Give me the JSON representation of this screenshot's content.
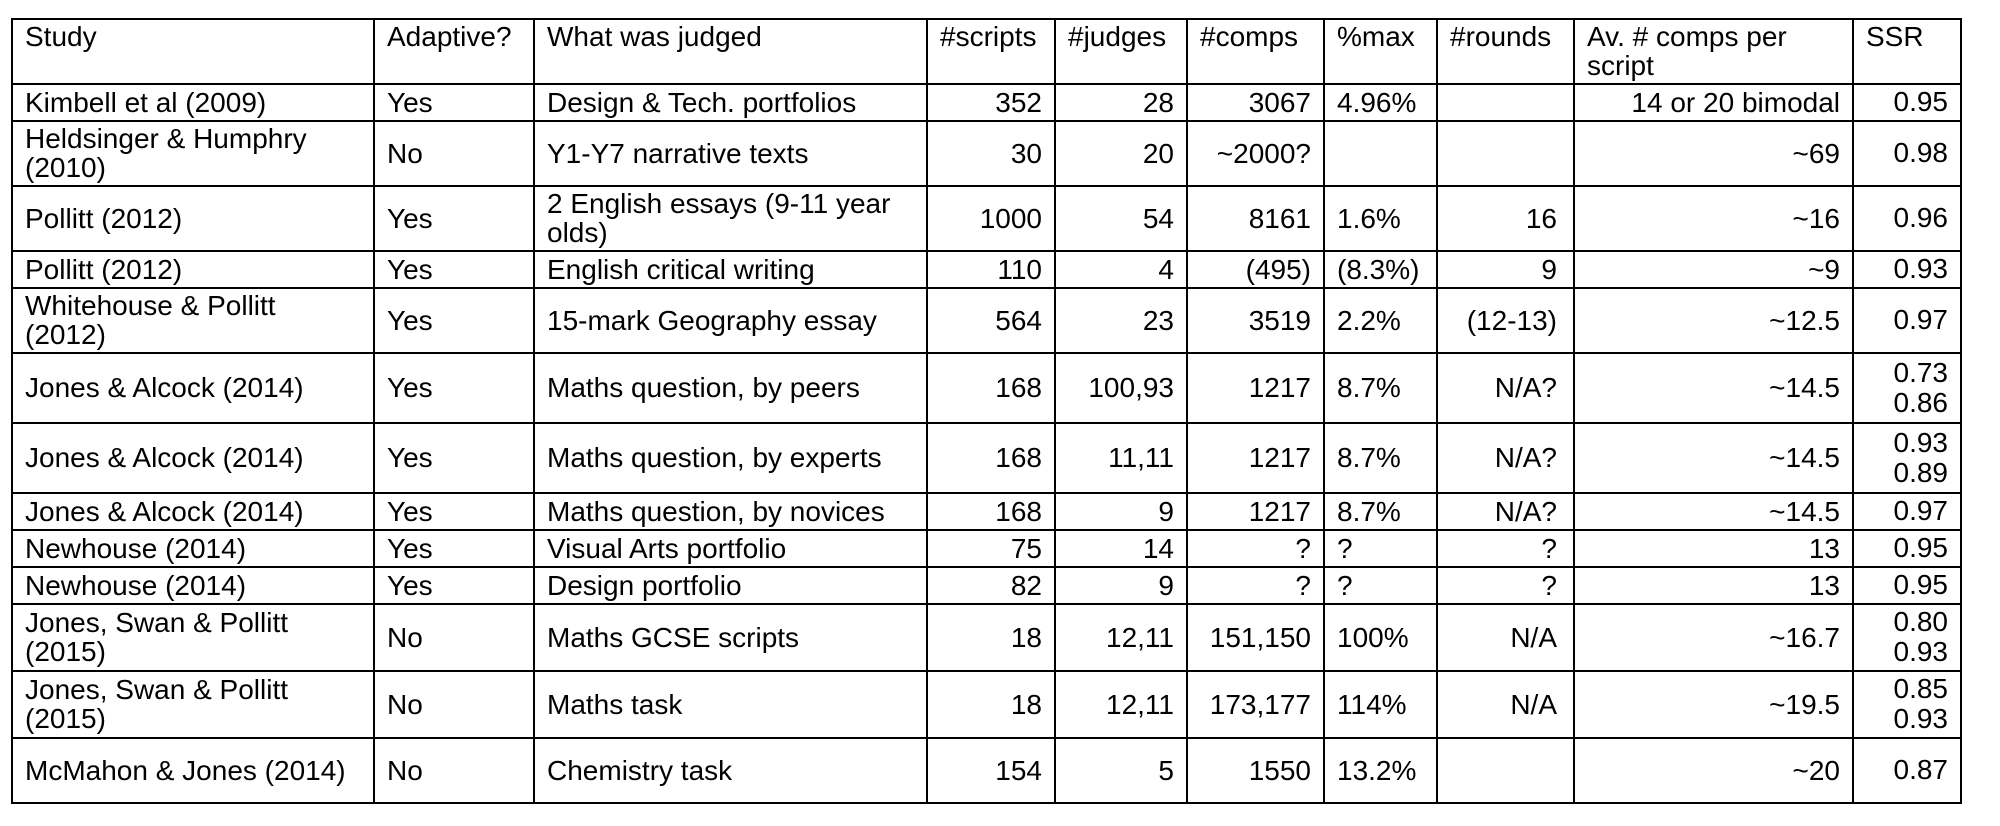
{
  "table": {
    "headers": [
      "Study",
      "Adaptive?",
      "What was judged",
      "#scripts",
      "#judges",
      "#comps",
      "%max",
      "#rounds",
      "Av.  # comps per script",
      "SSR"
    ],
    "rows": [
      {
        "study": "Kimbell et al (2009)",
        "adaptive": "Yes",
        "judged": "Design & Tech. portfolios",
        "scripts": "352",
        "judges": "28",
        "comps": "3067",
        "pct_max": "4.96%",
        "rounds": "",
        "avg_comps": "14 or 20 bimodal",
        "ssr": [
          "0.95"
        ]
      },
      {
        "study": "Heldsinger & Humphry (2010)",
        "adaptive": "No",
        "judged": "Y1-Y7 narrative texts",
        "scripts": "30",
        "judges": "20",
        "comps": "~2000?",
        "pct_max": "",
        "rounds": "",
        "avg_comps": "~69",
        "ssr": [
          "0.98"
        ]
      },
      {
        "study": "Pollitt (2012)",
        "adaptive": "Yes",
        "judged": "2 English essays (9-11 year olds)",
        "scripts": "1000",
        "judges": "54",
        "comps": "8161",
        "pct_max": "1.6%",
        "rounds": "16",
        "avg_comps": "~16",
        "ssr": [
          "0.96"
        ]
      },
      {
        "study": "Pollitt (2012)",
        "adaptive": "Yes",
        "judged": "English critical writing",
        "scripts": "110",
        "judges": "4",
        "comps": "(495)",
        "pct_max": "(8.3%)",
        "rounds": "9",
        "avg_comps": "~9",
        "ssr": [
          "0.93"
        ]
      },
      {
        "study": "Whitehouse & Pollitt (2012)",
        "adaptive": "Yes",
        "judged": "15-mark Geography essay",
        "scripts": "564",
        "judges": "23",
        "comps": "3519",
        "pct_max": "2.2%",
        "rounds": "(12-13)",
        "avg_comps": "~12.5",
        "ssr": [
          "0.97"
        ]
      },
      {
        "study": "Jones & Alcock (2014)",
        "adaptive": "Yes",
        "judged": "Maths question, by peers",
        "scripts": "168",
        "judges": "100,93",
        "comps": "1217",
        "pct_max": "8.7%",
        "rounds": "N/A?",
        "avg_comps": "~14.5",
        "ssr": [
          "0.73",
          "0.86"
        ]
      },
      {
        "study": "Jones & Alcock (2014)",
        "adaptive": "Yes",
        "judged": "Maths question, by experts",
        "scripts": "168",
        "judges": "11,11",
        "comps": "1217",
        "pct_max": "8.7%",
        "rounds": "N/A?",
        "avg_comps": "~14.5",
        "ssr": [
          "0.93",
          "0.89"
        ]
      },
      {
        "study": "Jones & Alcock (2014)",
        "adaptive": "Yes",
        "judged": "Maths question, by novices",
        "scripts": "168",
        "judges": "9",
        "comps": "1217",
        "pct_max": "8.7%",
        "rounds": "N/A?",
        "avg_comps": "~14.5",
        "ssr": [
          "0.97"
        ]
      },
      {
        "study": "Newhouse (2014)",
        "adaptive": "Yes",
        "judged": "Visual Arts portfolio",
        "scripts": "75",
        "judges": "14",
        "comps": "?",
        "pct_max": "?",
        "rounds": "?",
        "avg_comps": "13",
        "ssr": [
          "0.95"
        ]
      },
      {
        "study": "Newhouse (2014)",
        "adaptive": "Yes",
        "judged": "Design portfolio",
        "scripts": "82",
        "judges": "9",
        "comps": "?",
        "pct_max": "?",
        "rounds": "?",
        "avg_comps": "13",
        "ssr": [
          "0.95"
        ]
      },
      {
        "study": "Jones, Swan & Pollitt (2015)",
        "adaptive": "No",
        "judged": "Maths GCSE scripts",
        "scripts": "18",
        "judges": "12,11",
        "comps": "151,150",
        "pct_max": "100%",
        "rounds": "N/A",
        "avg_comps": "~16.7",
        "ssr": [
          "0.80",
          "0.93"
        ]
      },
      {
        "study": "Jones, Swan & Pollitt (2015)",
        "adaptive": "No",
        "judged": "Maths task",
        "scripts": "18",
        "judges": "12,11",
        "comps": "173,177",
        "pct_max": "114%",
        "rounds": "N/A",
        "avg_comps": "~19.5",
        "ssr": [
          "0.85",
          "0.93"
        ]
      },
      {
        "study": "McMahon & Jones (2014)",
        "adaptive": "No",
        "judged": "Chemistry task",
        "scripts": "154",
        "judges": "5",
        "comps": "1550",
        "pct_max": "13.2%",
        "rounds": "",
        "avg_comps": "~20",
        "ssr": [
          "0.87"
        ]
      }
    ]
  }
}
